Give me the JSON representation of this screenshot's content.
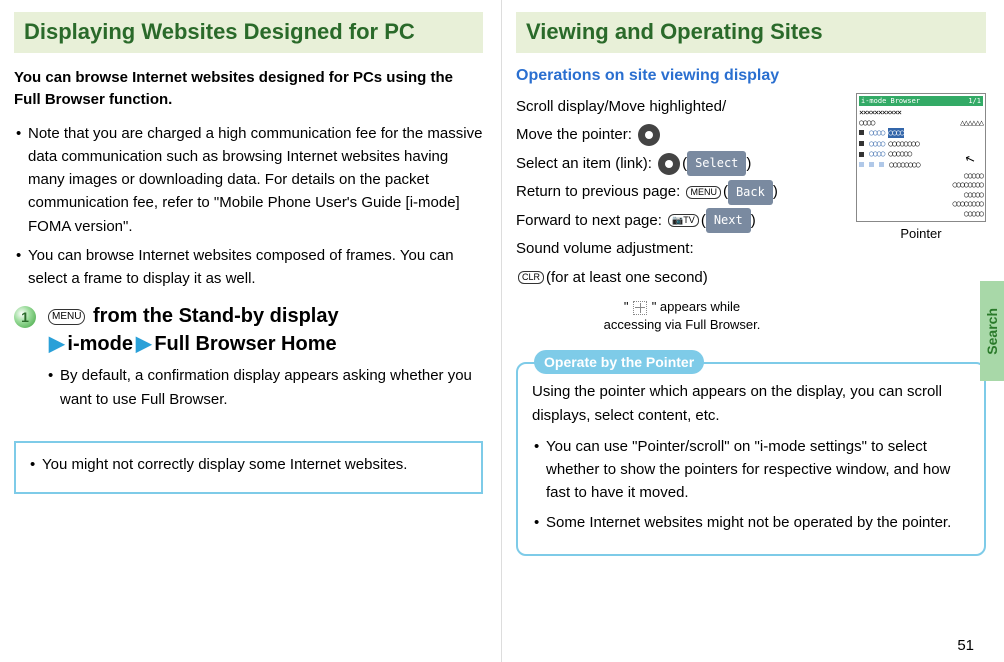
{
  "left": {
    "heading": "Displaying Websites Designed for PC",
    "lead": "You can browse Internet websites designed for PCs using the Full Browser function.",
    "notes": [
      "Note that you are charged a high communication fee for the massive data communication such as browsing Internet websites having many images or downloading data. For details on the packet communication fee, refer to \"Mobile Phone User's Guide [i-mode] FOMA version\".",
      "You can browse Internet websites composed of frames. You can select a frame to display it as well."
    ],
    "step_num": "1",
    "menu_key": "MENU",
    "step_title_1": " from the Stand-by display",
    "step_title_2a": "i-mode",
    "step_title_2b": "Full Browser Home",
    "step_sub": "By default, a confirmation display appears asking whether you want to use Full Browser.",
    "infobox": "You might not correctly display some Internet websites."
  },
  "right": {
    "heading": "Viewing and Operating Sites",
    "subhead": "Operations on site viewing display",
    "ops": {
      "scroll": "Scroll display/Move highlighted/",
      "move_pointer": "Move the pointer:",
      "select_item": "Select an item (link):",
      "select_pill": "Select",
      "return_prev": "Return to previous page:",
      "prev_key": "MENU",
      "prev_pill": "Back",
      "forward": "Forward to next page:",
      "fwd_key": "📷TV",
      "fwd_pill": "Next",
      "sound": "Sound volume adjustment:",
      "sound_key": "CLR",
      "sound_tail": "(for at least one second)"
    },
    "hint_1": "\" ",
    "hint_2": " \" appears while",
    "hint_3": "accessing via Full Browser.",
    "phone": {
      "title_left": "i-mode Browser",
      "title_right": "1/1"
    },
    "pointer_label": "Pointer",
    "callout_tab": "Operate by the Pointer",
    "callout_lead": "Using the pointer which appears on the display, you can scroll displays, select content, etc.",
    "callout_notes": [
      "You can use \"Pointer/scroll\" on \"i-mode settings\" to select whether to show the pointers for respective window, and how fast to have it moved.",
      "Some Internet websites might not be operated by the pointer."
    ]
  },
  "side_tab": "Search",
  "page_num": "51",
  "colors": {
    "heading_bg": "#e8f0d8",
    "heading_fg": "#2a6a2a",
    "accent_blue": "#7ecbe8",
    "link_blue": "#2a6fd0",
    "arrow": "#2aa0d8",
    "pill_bg": "#7a8aa0",
    "side_bg": "#a8d8a8",
    "side_fg": "#2a7a2a"
  }
}
